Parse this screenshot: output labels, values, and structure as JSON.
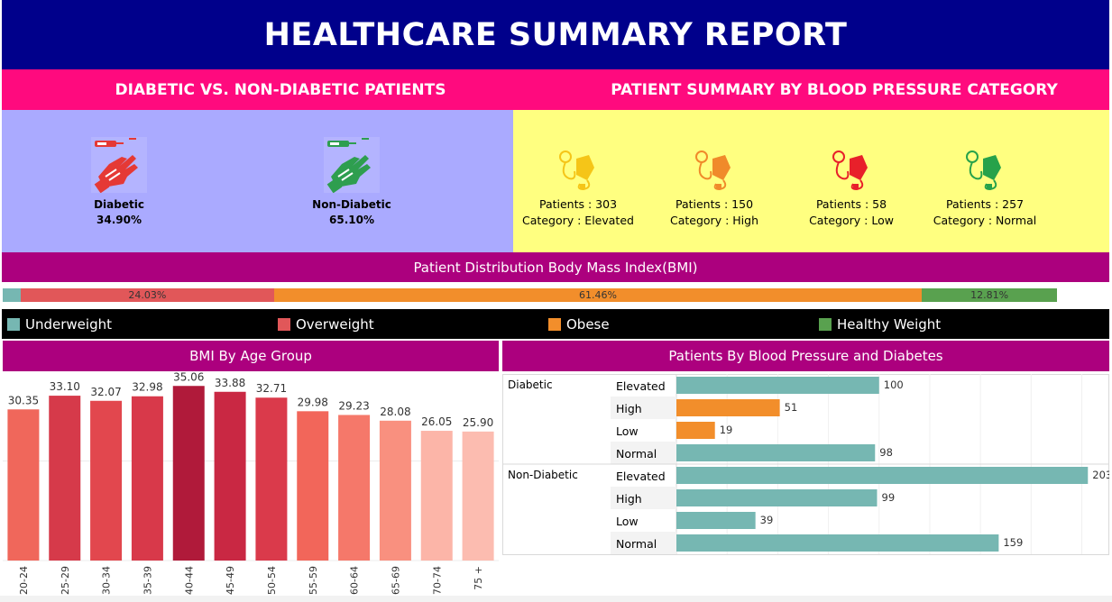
{
  "report_title": "HEALTHCARE SUMMARY REPORT",
  "headings": {
    "diabetic_vs_non": "DIABETIC VS. NON-DIABETIC PATIENTS",
    "bp_summary": "PATIENT SUMMARY BY BLOOD PRESSURE CATEGORY",
    "bmi_distribution": "Patient Distribution Body Mass Index(BMI)",
    "bmi_by_age": "BMI By Age Group",
    "bp_and_diabetes": "Patients  By Blood Pressure and Diabetes"
  },
  "diabetes_split": [
    {
      "label": "Diabetic",
      "pct": "34.90%",
      "icon": "diabetic-icon",
      "color": "#e53935"
    },
    {
      "label": "Non-Diabetic",
      "pct": "65.10%",
      "icon": "non-diabetic-icon",
      "color": "#2e9e4f"
    }
  ],
  "bp_categories": [
    {
      "patients_label": "Patients :",
      "patients": "303",
      "category_label": "Category :",
      "category": "Elevated",
      "color": "#f5c518",
      "icon": "bp-monitor-icon"
    },
    {
      "patients_label": "Patients :",
      "patients": "150",
      "category_label": "Category :",
      "category": "High",
      "color": "#f08a2a",
      "icon": "bp-monitor-icon"
    },
    {
      "patients_label": "Patients :",
      "patients": "58",
      "category_label": "Category :",
      "category": "Low",
      "color": "#e8202a",
      "icon": "bp-monitor-icon"
    },
    {
      "patients_label": "Patients :",
      "patients": "257",
      "category_label": "Category :",
      "category": "Normal",
      "color": "#27a24a",
      "icon": "bp-monitor-icon"
    }
  ],
  "bmi_strip": [
    {
      "label": "",
      "pct": 1.7,
      "color": "#76b7b2"
    },
    {
      "label": "24.03%",
      "pct": 24.03,
      "color": "#e15759"
    },
    {
      "label": "61.46%",
      "pct": 61.46,
      "color": "#f28e2b"
    },
    {
      "label": "12.81%",
      "pct": 12.81,
      "color": "#59a14f"
    }
  ],
  "bmi_legend": [
    {
      "label": "Underweight",
      "color": "#76b7b2"
    },
    {
      "label": "Overweight",
      "color": "#e15759"
    },
    {
      "label": "Obese",
      "color": "#f28e2b"
    },
    {
      "label": "Healthy Weight",
      "color": "#59a14f"
    }
  ],
  "chart_data": [
    {
      "type": "bar",
      "title": "BMI By Age Group",
      "categories": [
        "20-24",
        "25-29",
        "30-34",
        "35-39",
        "40-44",
        "45-49",
        "50-54",
        "55-59",
        "60-64",
        "65-69",
        "70-74",
        "75 +"
      ],
      "values": [
        30.35,
        33.1,
        32.07,
        32.98,
        35.06,
        33.88,
        32.71,
        29.98,
        29.23,
        28.08,
        26.05,
        25.9
      ],
      "labels": [
        "30.35",
        "33.10",
        "32.07",
        "32.98",
        "35.06",
        "33.88",
        "32.71",
        "29.98",
        "29.23",
        "28.08",
        "26.05",
        "25.90"
      ],
      "colors": [
        "#f0675b",
        "#d63a4a",
        "#e2474e",
        "#d8394a",
        "#b01a3a",
        "#c92843",
        "#da3a4b",
        "#f2665a",
        "#f5786a",
        "#f9907f",
        "#fcb5a8",
        "#fcbcb0"
      ],
      "ylim": [
        0,
        38
      ]
    },
    {
      "type": "bar",
      "orientation": "horizontal",
      "title": "Patients  By Blood Pressure and Diabetes",
      "groups": [
        {
          "name": "Diabetic",
          "rows": [
            {
              "category": "Elevated",
              "value": 100,
              "color": "#76b7b2"
            },
            {
              "category": "High",
              "value": 51,
              "color": "#f28e2b"
            },
            {
              "category": "Low",
              "value": 19,
              "color": "#f28e2b"
            },
            {
              "category": "Normal",
              "value": 98,
              "color": "#76b7b2"
            }
          ]
        },
        {
          "name": "Non-Diabetic",
          "rows": [
            {
              "category": "Elevated",
              "value": 203,
              "color": "#76b7b2"
            },
            {
              "category": "High",
              "value": 99,
              "color": "#76b7b2"
            },
            {
              "category": "Low",
              "value": 39,
              "color": "#76b7b2"
            },
            {
              "category": "Normal",
              "value": 159,
              "color": "#76b7b2"
            }
          ]
        }
      ],
      "xlim": [
        0,
        210
      ]
    }
  ]
}
